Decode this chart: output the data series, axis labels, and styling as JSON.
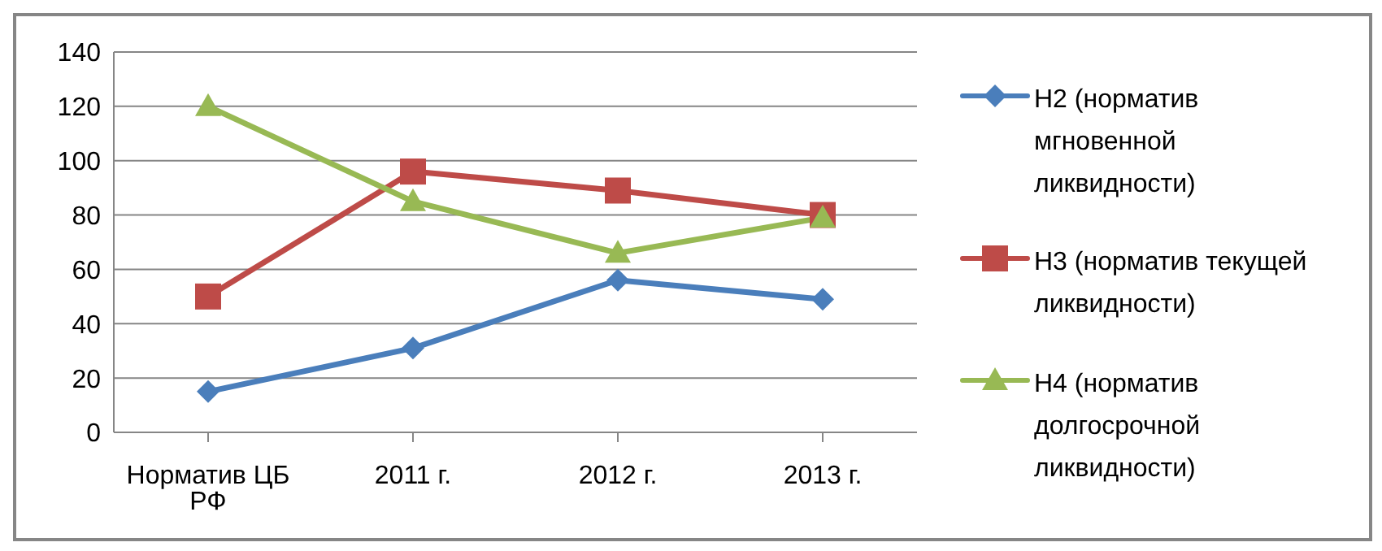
{
  "chart_data": {
    "type": "line",
    "categories": [
      "Норматив ЦБ РФ",
      "2011 г.",
      "2012 г.",
      "2013 г."
    ],
    "series": [
      {
        "name": "Н2 (норматив мгновенной ликвидности)",
        "color": "#4a7ebb",
        "marker": "diamond",
        "values": [
          15,
          31,
          56,
          49
        ]
      },
      {
        "name": "Н3 (норматив текущей ликвидности)",
        "color": "#be4b48",
        "marker": "square",
        "values": [
          50,
          96,
          89,
          80
        ]
      },
      {
        "name": "Н4 (норматив долгосрочной ликвидности)",
        "color": "#98b954",
        "marker": "triangle",
        "values": [
          120,
          85,
          66,
          79
        ]
      }
    ],
    "ylim": [
      0,
      140
    ],
    "yticks": [
      0,
      20,
      40,
      60,
      80,
      100,
      120,
      140
    ],
    "grid": "y",
    "legend": "right"
  }
}
